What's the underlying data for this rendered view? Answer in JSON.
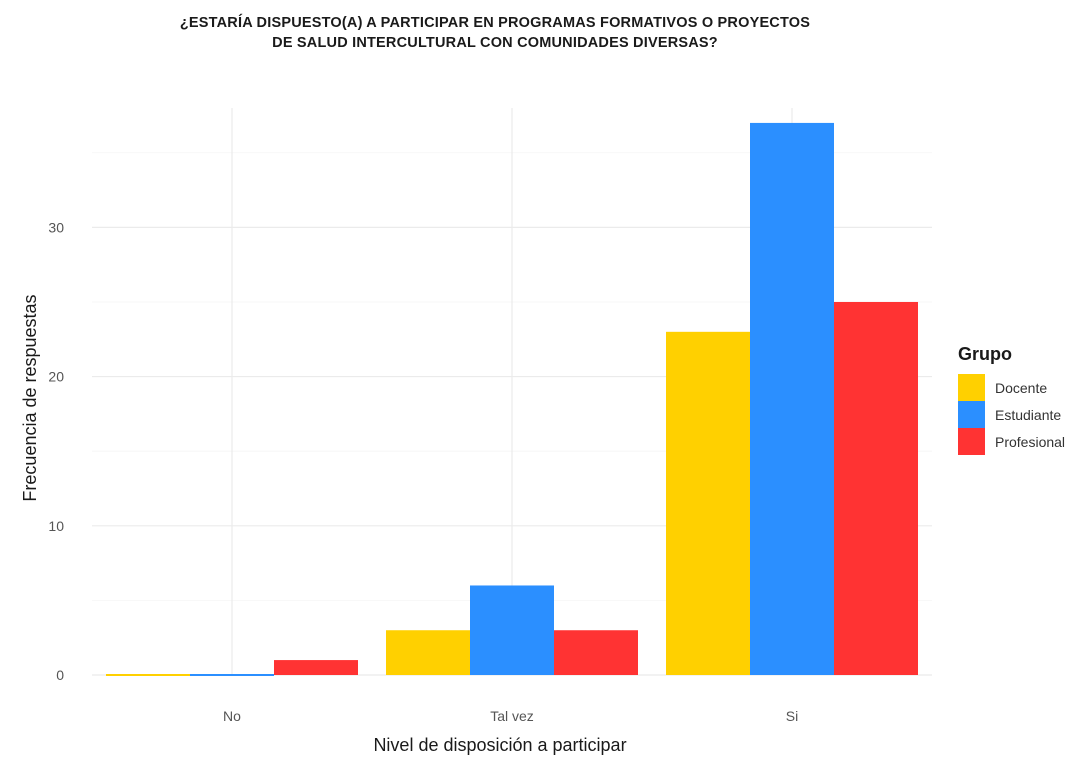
{
  "chart_data": {
    "type": "bar",
    "title_lines": [
      "¿ESTARÍA DISPUESTO(A) A PARTICIPAR EN PROGRAMAS FORMATIVOS O PROYECTOS",
      "DE SALUD INTERCULTURAL CON COMUNIDADES DIVERSAS?"
    ],
    "xlabel": "Nivel de disposición a participar",
    "ylabel": "Frecuencia de respuestas",
    "categories": [
      "No",
      "Tal vez",
      "Si"
    ],
    "series": [
      {
        "name": "Docente",
        "color": "#FFD000",
        "values": [
          0,
          3,
          23
        ]
      },
      {
        "name": "Estudiante",
        "color": "#2B8FFF",
        "values": [
          0,
          6,
          37
        ]
      },
      {
        "name": "Profesional",
        "color": "#FF3333",
        "values": [
          1,
          3,
          25
        ]
      }
    ],
    "yticks": [
      0,
      10,
      20,
      30
    ],
    "ylim": [
      0,
      38
    ],
    "grid": true,
    "legend": {
      "title": "Grupo",
      "position": "right"
    }
  }
}
